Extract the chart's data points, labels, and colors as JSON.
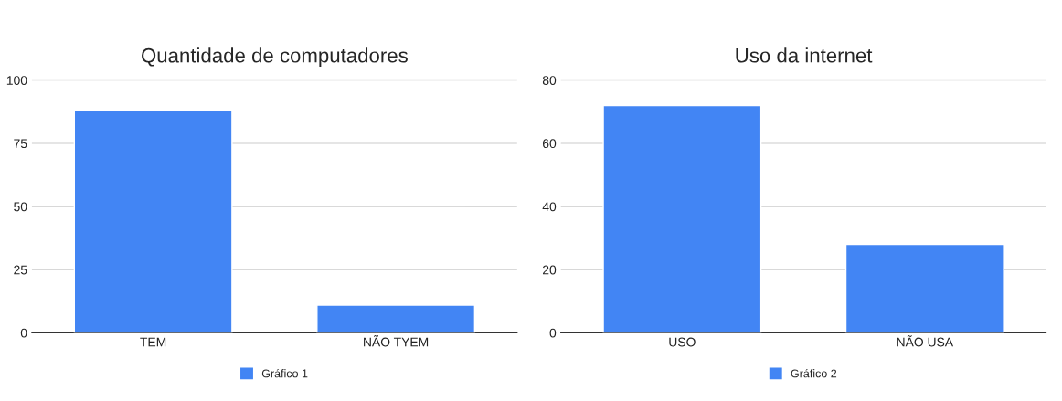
{
  "chart_data": [
    {
      "type": "bar",
      "title": "Quantidade de computadores",
      "categories": [
        "TEM",
        "NÃO TYEM"
      ],
      "series": [
        {
          "name": "Gráfico 1",
          "color": "#4285f4",
          "values": [
            88,
            11
          ]
        }
      ],
      "ylim": [
        0,
        100
      ],
      "yticks": [
        0,
        25,
        50,
        75,
        100
      ],
      "grid": "y",
      "legend": "bottom"
    },
    {
      "type": "bar",
      "title": "Uso da internet",
      "categories": [
        "USO",
        "NÃO USA"
      ],
      "series": [
        {
          "name": "Gráfico 2",
          "color": "#4285f4",
          "values": [
            72,
            28
          ]
        }
      ],
      "ylim": [
        0,
        80
      ],
      "yticks": [
        0,
        20,
        40,
        60,
        80
      ],
      "grid": "y",
      "legend": "bottom"
    }
  ]
}
